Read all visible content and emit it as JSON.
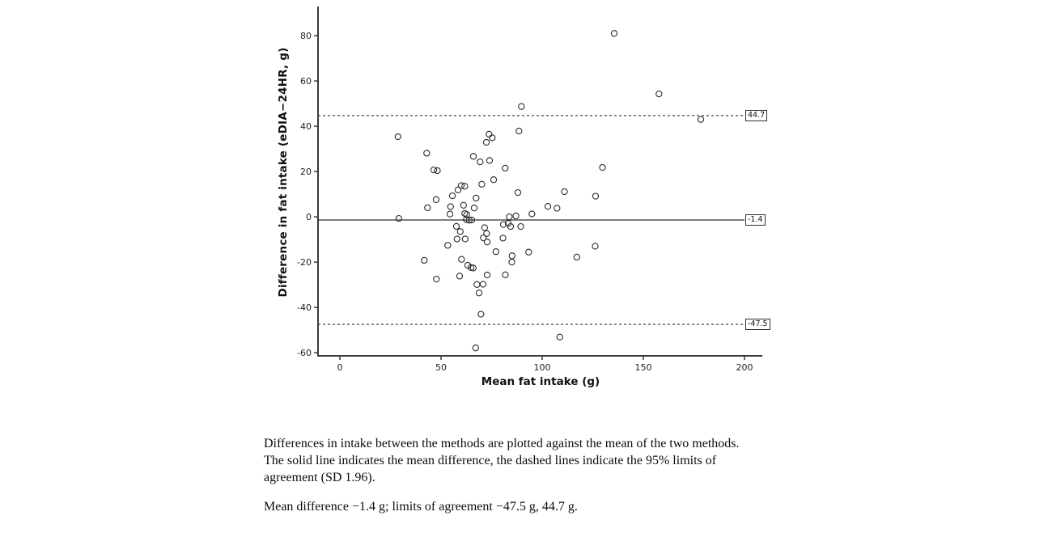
{
  "figure": {
    "captions": {
      "para1": "Differences in intake between the methods are plotted against the mean of the two methods. The solid line indicates the mean difference, the dashed lines indicate the 95% limits of agreement (SD 1.96).",
      "para2": "Mean difference −1.4 g; limits of agreement −47.5 g, 44.7 g."
    }
  },
  "chart_data": {
    "type": "scatter",
    "title": "",
    "xlabel": "Mean fat intake (g)",
    "ylabel": "Difference in fat intake (eDIA−24HR, g)",
    "xlim": [
      -10.8,
      208.8
    ],
    "ylim": [
      -61.4,
      92.9
    ],
    "x_ticks": [
      0,
      50,
      100,
      150,
      200
    ],
    "y_ticks": [
      80,
      60,
      40,
      20,
      0,
      -20,
      -40,
      -60
    ],
    "grid": false,
    "legend": "none",
    "marker_style": {
      "shape": "open-circle",
      "color": "#2b2b2b"
    },
    "reference_lines": [
      {
        "name": "upper-loa",
        "value": 44.7,
        "label": "44.7",
        "style": "dashed"
      },
      {
        "name": "mean-difference",
        "value": -1.4,
        "label": "-1.4",
        "style": "solid"
      },
      {
        "name": "lower-loa",
        "value": -47.5,
        "label": "-47.5",
        "style": "dashed"
      }
    ],
    "points": [
      [
        28.7,
        35.4
      ],
      [
        29.1,
        -0.7
      ],
      [
        42.9,
        28.1
      ],
      [
        46.4,
        20.7
      ],
      [
        48.2,
        20.4
      ],
      [
        41.7,
        -19.2
      ],
      [
        47.7,
        -27.5
      ],
      [
        43.3,
        4.0
      ],
      [
        47.6,
        7.6
      ],
      [
        53.3,
        -12.6
      ],
      [
        54.7,
        4.5
      ],
      [
        54.4,
        1.2
      ],
      [
        55.6,
        9.3
      ],
      [
        57.6,
        -4.2
      ],
      [
        57.9,
        -9.8
      ],
      [
        61.9,
        -9.8
      ],
      [
        58.4,
        11.9
      ],
      [
        59.5,
        -6.5
      ],
      [
        59.2,
        -26.2
      ],
      [
        60.0,
        13.8
      ],
      [
        61.7,
        13.5
      ],
      [
        61.1,
        5.1
      ],
      [
        61.7,
        1.5
      ],
      [
        62.7,
        1.0
      ],
      [
        60.1,
        -18.8
      ],
      [
        63.2,
        -21.4
      ],
      [
        64.8,
        -22.4
      ],
      [
        65.9,
        -22.6
      ],
      [
        62.5,
        -1.2
      ],
      [
        63.9,
        -1.5
      ],
      [
        65.2,
        -1.4
      ],
      [
        66.0,
        26.7
      ],
      [
        67.3,
        8.3
      ],
      [
        66.4,
        3.9
      ],
      [
        67.7,
        -29.9
      ],
      [
        68.8,
        -33.6
      ],
      [
        69.7,
        -43.0
      ],
      [
        67.1,
        -57.9
      ],
      [
        69.3,
        24.3
      ],
      [
        70.1,
        14.4
      ],
      [
        70.8,
        -29.8
      ],
      [
        71.5,
        -4.8
      ],
      [
        72.5,
        -7.4
      ],
      [
        72.4,
        32.9
      ],
      [
        73.7,
        36.5
      ],
      [
        75.3,
        34.9
      ],
      [
        74.0,
        24.9
      ],
      [
        70.9,
        -9.3
      ],
      [
        72.8,
        -11.1
      ],
      [
        72.8,
        -25.7
      ],
      [
        76.0,
        16.4
      ],
      [
        77.1,
        -15.4
      ],
      [
        80.6,
        -9.4
      ],
      [
        81.7,
        21.5
      ],
      [
        80.8,
        -3.4
      ],
      [
        83.2,
        -2.9
      ],
      [
        84.4,
        -4.3
      ],
      [
        83.7,
        0.0
      ],
      [
        87.0,
        0.4
      ],
      [
        85.1,
        -17.2
      ],
      [
        85.0,
        -20.0
      ],
      [
        81.8,
        -25.6
      ],
      [
        88.0,
        10.7
      ],
      [
        89.4,
        -4.3
      ],
      [
        89.7,
        48.7
      ],
      [
        88.5,
        37.9
      ],
      [
        93.3,
        -15.6
      ],
      [
        94.9,
        1.3
      ],
      [
        102.8,
        4.6
      ],
      [
        107.3,
        3.8
      ],
      [
        108.7,
        -53.1
      ],
      [
        111.0,
        11.1
      ],
      [
        117.1,
        -17.8
      ],
      [
        126.2,
        -13.0
      ],
      [
        126.4,
        9.1
      ],
      [
        129.8,
        21.8
      ],
      [
        135.6,
        81.0
      ],
      [
        157.7,
        54.3
      ],
      [
        178.4,
        43.0
      ]
    ]
  }
}
